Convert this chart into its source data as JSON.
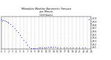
{
  "title": "Milwaukee Weather Barometric Pressure\nper Minute\n(24 Hours)",
  "bg_color": "#ffffff",
  "dot_color": "#0000ff",
  "grid_color": "#999999",
  "x_min": 0,
  "x_max": 1440,
  "y_min": 29.05,
  "y_max": 30.05,
  "y_ticks": [
    29.1,
    29.2,
    29.3,
    29.4,
    29.5,
    29.6,
    29.7,
    29.8,
    29.9,
    30.0
  ],
  "y_tick_labels": [
    "29.1",
    "29.2",
    "29.3",
    "29.4",
    "29.5",
    "29.6",
    "29.7",
    "29.8",
    "29.9",
    "30.0"
  ],
  "x_tick_positions": [
    0,
    60,
    120,
    180,
    240,
    300,
    360,
    420,
    480,
    540,
    600,
    660,
    720,
    780,
    840,
    900,
    960,
    1020,
    1080,
    1140,
    1200,
    1260,
    1320,
    1380,
    1440
  ],
  "x_tick_labels": [
    "0",
    "1",
    "2",
    "3",
    "4",
    "5",
    "6",
    "7",
    "8",
    "9",
    "10",
    "11",
    "12",
    "13",
    "14",
    "15",
    "16",
    "17",
    "18",
    "19",
    "20",
    "21",
    "22",
    "23",
    "24"
  ],
  "data_x": [
    0,
    20,
    40,
    60,
    80,
    100,
    120,
    150,
    180,
    210,
    240,
    270,
    300,
    330,
    360,
    390,
    420,
    450,
    480,
    510,
    540,
    570,
    600,
    630,
    660,
    690,
    720,
    750,
    780,
    810,
    840,
    870,
    900,
    950,
    1000,
    1050,
    1100,
    1150,
    1200,
    1250,
    1300,
    1350,
    1400,
    1440
  ],
  "data_y": [
    29.97,
    29.94,
    29.96,
    29.93,
    29.9,
    29.88,
    29.86,
    29.82,
    29.77,
    29.7,
    29.63,
    29.56,
    29.49,
    29.42,
    29.34,
    29.26,
    29.18,
    29.12,
    29.08,
    29.07,
    29.07,
    29.08,
    29.09,
    29.1,
    29.11,
    29.11,
    29.11,
    29.12,
    29.12,
    29.12,
    29.12,
    29.12,
    29.11,
    29.11,
    29.1,
    29.1,
    29.1,
    29.1,
    29.1,
    29.1,
    29.1,
    29.11,
    29.97,
    29.85
  ]
}
